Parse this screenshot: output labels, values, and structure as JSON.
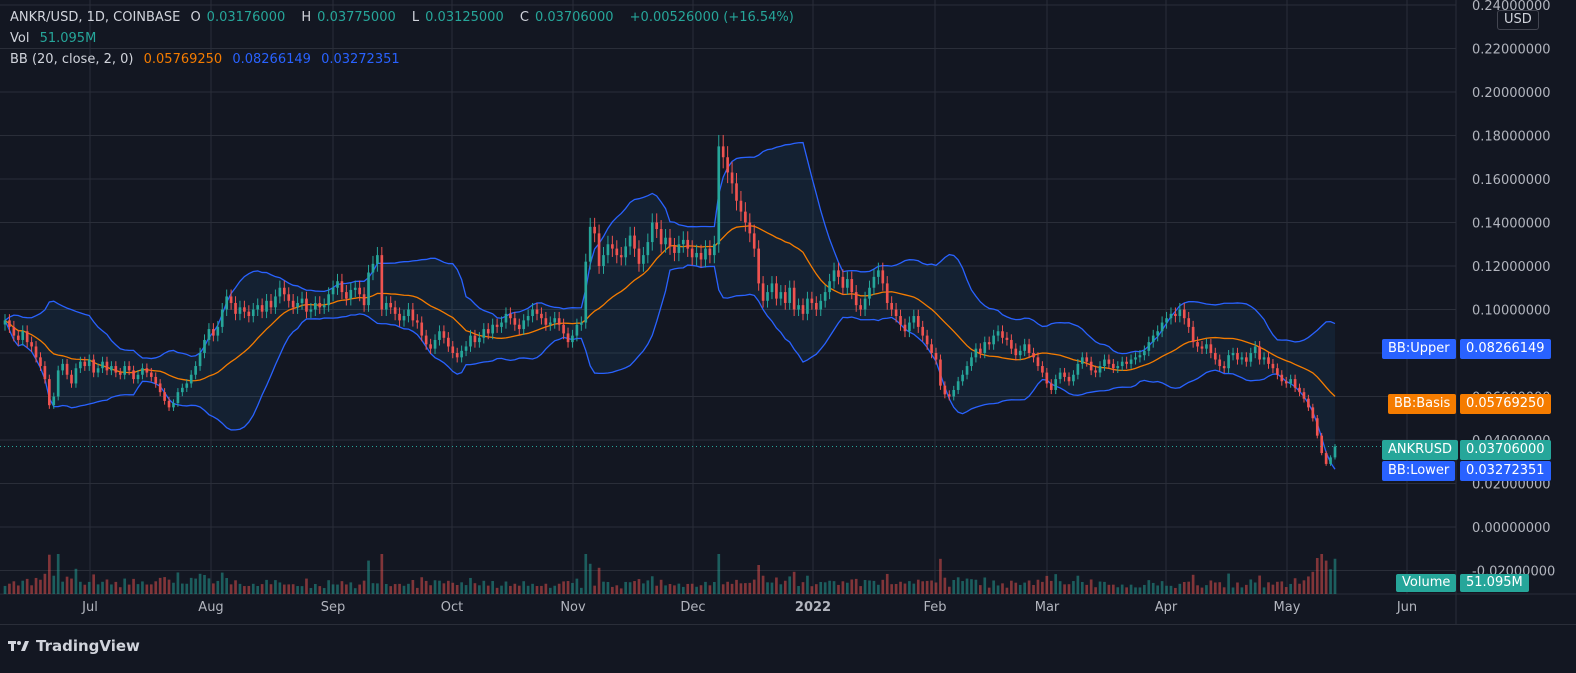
{
  "header": {
    "symbol": "ANKR/USD, 1D, COINBASE",
    "o_label": "O",
    "o_value": "0.03176000",
    "h_label": "H",
    "h_value": "0.03775000",
    "l_label": "L",
    "l_value": "0.03125000",
    "c_label": "C",
    "c_value": "0.03706000",
    "change": "+0.00526000 (+16.54%)",
    "vol_label": "Vol",
    "vol_value": "51.095M",
    "bb_label": "BB (20, close, 2, 0)",
    "bb_basis": "0.05769250",
    "bb_upper": "0.08266149",
    "bb_lower": "0.03272351"
  },
  "currency": "USD",
  "badges": {
    "upper_name": "BB:Upper",
    "upper_value": "0.08266149",
    "basis_name": "BB:Basis",
    "basis_value": "0.05769250",
    "price_name": "ANKRUSD",
    "price_value": "0.03706000",
    "lower_name": "BB:Lower",
    "lower_value": "0.03272351",
    "volume_name": "Volume",
    "volume_value": "51.095M"
  },
  "footer": {
    "brand": "TradingView"
  },
  "colors": {
    "up": "#26a69a",
    "down": "#ef5350",
    "upper_band": "#2962ff",
    "basis": "#f57c00",
    "background": "#131722",
    "grid": "#2a2e39"
  },
  "chart_data": {
    "type": "candlestick",
    "title": "ANKR/USD, 1D, COINBASE",
    "ylim": [
      -0.02,
      0.24
    ],
    "y_ticks": [
      "0.24000000",
      "0.22000000",
      "0.20000000",
      "0.18000000",
      "0.16000000",
      "0.14000000",
      "0.12000000",
      "0.10000000",
      "0.08000000",
      "0.06000000",
      "0.04000000",
      "0.02000000",
      "0.00000000",
      "-0.02000000"
    ],
    "x_ticks": [
      "Jul",
      "Aug",
      "Sep",
      "Oct",
      "Nov",
      "Dec",
      "2022",
      "Feb",
      "Mar",
      "Apr",
      "May",
      "Jun"
    ],
    "close_series": [
      0.095,
      0.092,
      0.088,
      0.086,
      0.09,
      0.085,
      0.083,
      0.078,
      0.074,
      0.068,
      0.056,
      0.06,
      0.072,
      0.075,
      0.07,
      0.066,
      0.073,
      0.076,
      0.074,
      0.077,
      0.071,
      0.073,
      0.076,
      0.072,
      0.074,
      0.071,
      0.07,
      0.074,
      0.072,
      0.068,
      0.07,
      0.073,
      0.071,
      0.069,
      0.066,
      0.062,
      0.058,
      0.055,
      0.057,
      0.062,
      0.064,
      0.066,
      0.07,
      0.074,
      0.08,
      0.086,
      0.091,
      0.088,
      0.092,
      0.1,
      0.106,
      0.103,
      0.098,
      0.101,
      0.099,
      0.097,
      0.1,
      0.102,
      0.099,
      0.104,
      0.101,
      0.106,
      0.11,
      0.107,
      0.104,
      0.101,
      0.103,
      0.105,
      0.099,
      0.1,
      0.103,
      0.101,
      0.102,
      0.107,
      0.11,
      0.113,
      0.108,
      0.105,
      0.109,
      0.11,
      0.107,
      0.102,
      0.117,
      0.121,
      0.125,
      0.1,
      0.103,
      0.101,
      0.098,
      0.095,
      0.097,
      0.1,
      0.095,
      0.094,
      0.088,
      0.084,
      0.082,
      0.086,
      0.09,
      0.087,
      0.083,
      0.08,
      0.078,
      0.081,
      0.083,
      0.088,
      0.085,
      0.087,
      0.091,
      0.089,
      0.093,
      0.092,
      0.094,
      0.098,
      0.096,
      0.093,
      0.091,
      0.095,
      0.097,
      0.1,
      0.098,
      0.096,
      0.093,
      0.094,
      0.096,
      0.093,
      0.089,
      0.085,
      0.088,
      0.093,
      0.094,
      0.122,
      0.138,
      0.135,
      0.12,
      0.125,
      0.13,
      0.128,
      0.125,
      0.124,
      0.129,
      0.134,
      0.128,
      0.121,
      0.125,
      0.131,
      0.14,
      0.137,
      0.13,
      0.133,
      0.129,
      0.126,
      0.13,
      0.132,
      0.128,
      0.124,
      0.126,
      0.123,
      0.128,
      0.125,
      0.13,
      0.175,
      0.17,
      0.163,
      0.158,
      0.15,
      0.145,
      0.14,
      0.135,
      0.128,
      0.112,
      0.104,
      0.108,
      0.112,
      0.105,
      0.108,
      0.103,
      0.11,
      0.1,
      0.102,
      0.098,
      0.105,
      0.103,
      0.1,
      0.104,
      0.108,
      0.113,
      0.118,
      0.115,
      0.11,
      0.114,
      0.108,
      0.102,
      0.1,
      0.105,
      0.11,
      0.115,
      0.118,
      0.112,
      0.103,
      0.1,
      0.097,
      0.093,
      0.09,
      0.094,
      0.097,
      0.092,
      0.088,
      0.084,
      0.08,
      0.077,
      0.065,
      0.061,
      0.06,
      0.063,
      0.067,
      0.07,
      0.074,
      0.078,
      0.082,
      0.08,
      0.085,
      0.084,
      0.088,
      0.09,
      0.087,
      0.086,
      0.082,
      0.079,
      0.081,
      0.084,
      0.08,
      0.078,
      0.074,
      0.071,
      0.066,
      0.063,
      0.068,
      0.071,
      0.069,
      0.067,
      0.07,
      0.075,
      0.078,
      0.076,
      0.072,
      0.071,
      0.074,
      0.077,
      0.075,
      0.073,
      0.074,
      0.076,
      0.075,
      0.077,
      0.078,
      0.079,
      0.081,
      0.085,
      0.088,
      0.09,
      0.094,
      0.096,
      0.098,
      0.097,
      0.1,
      0.096,
      0.092,
      0.085,
      0.083,
      0.082,
      0.084,
      0.08,
      0.077,
      0.074,
      0.073,
      0.079,
      0.08,
      0.077,
      0.078,
      0.076,
      0.08,
      0.083,
      0.077,
      0.078,
      0.075,
      0.073,
      0.07,
      0.067,
      0.066,
      0.068,
      0.064,
      0.062,
      0.059,
      0.055,
      0.05,
      0.042,
      0.034,
      0.029,
      0.032,
      0.037
    ],
    "volume_note": "Volume histogram uses same colors as candles"
  }
}
